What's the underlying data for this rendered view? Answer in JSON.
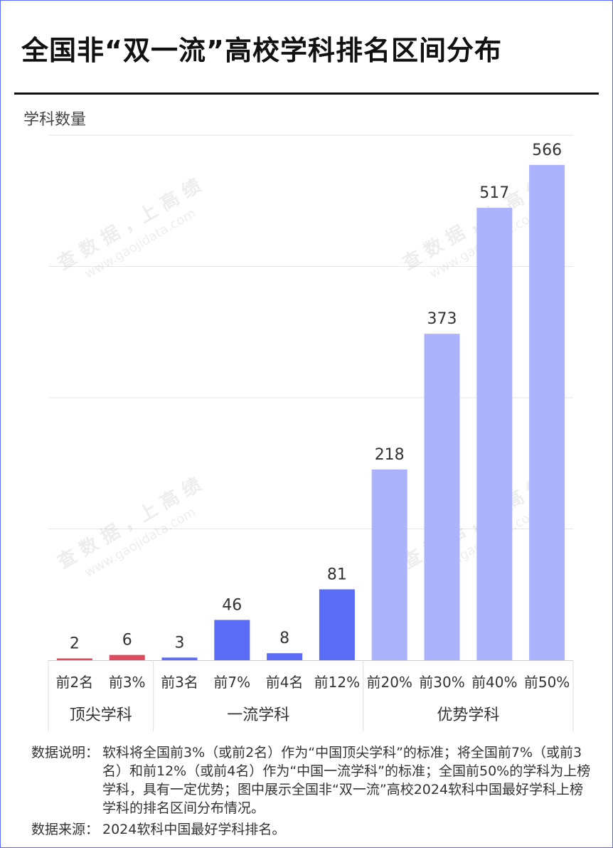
{
  "header": {
    "title": "全国非“双一流”高校学科排名区间分布"
  },
  "watermark": {
    "line1": "查 数 据 ，上 高 绩",
    "line2": "www.gaojidata.com"
  },
  "chart_data": {
    "type": "bar",
    "title": "全国非“双一流”高校学科排名区间分布",
    "ylabel": "学科数量",
    "xlabel": "",
    "ylim": [
      0,
      600
    ],
    "grid": true,
    "categories": [
      "前2名",
      "前3%",
      "前3名",
      "前7%",
      "前4名",
      "前12%",
      "前20%",
      "前30%",
      "前40%",
      "前50%"
    ],
    "values": [
      2,
      6,
      3,
      46,
      8,
      81,
      218,
      373,
      517,
      566
    ],
    "colors": [
      "#e04a5f",
      "#e04a5f",
      "#5b6cf7",
      "#5b6cf7",
      "#5b6cf7",
      "#5b6cf7",
      "#aab3fb",
      "#aab3fb",
      "#aab3fb",
      "#aab3fb"
    ],
    "groups": [
      {
        "name": "顶尖学科",
        "start": 0,
        "end": 1
      },
      {
        "name": "一流学科",
        "start": 2,
        "end": 5
      },
      {
        "name": "优势学科",
        "start": 6,
        "end": 9
      }
    ]
  },
  "notes": {
    "explain_label": "数据说明：",
    "explain_text": "软科将全国前3%（或前2名）作为“中国顶尖学科”的标准；将全国前7%（或前3名）和前12%（或前4名）作为“中国一流学科”的标准；全国前50%的学科为上榜学科，具有一定优势；图中展示全国非“双一流”高校2024软科中国最好学科上榜学科的排名区间分布情况。",
    "source_label": "数据来源：",
    "source_text": "2024软科中国最好学科排名。"
  }
}
